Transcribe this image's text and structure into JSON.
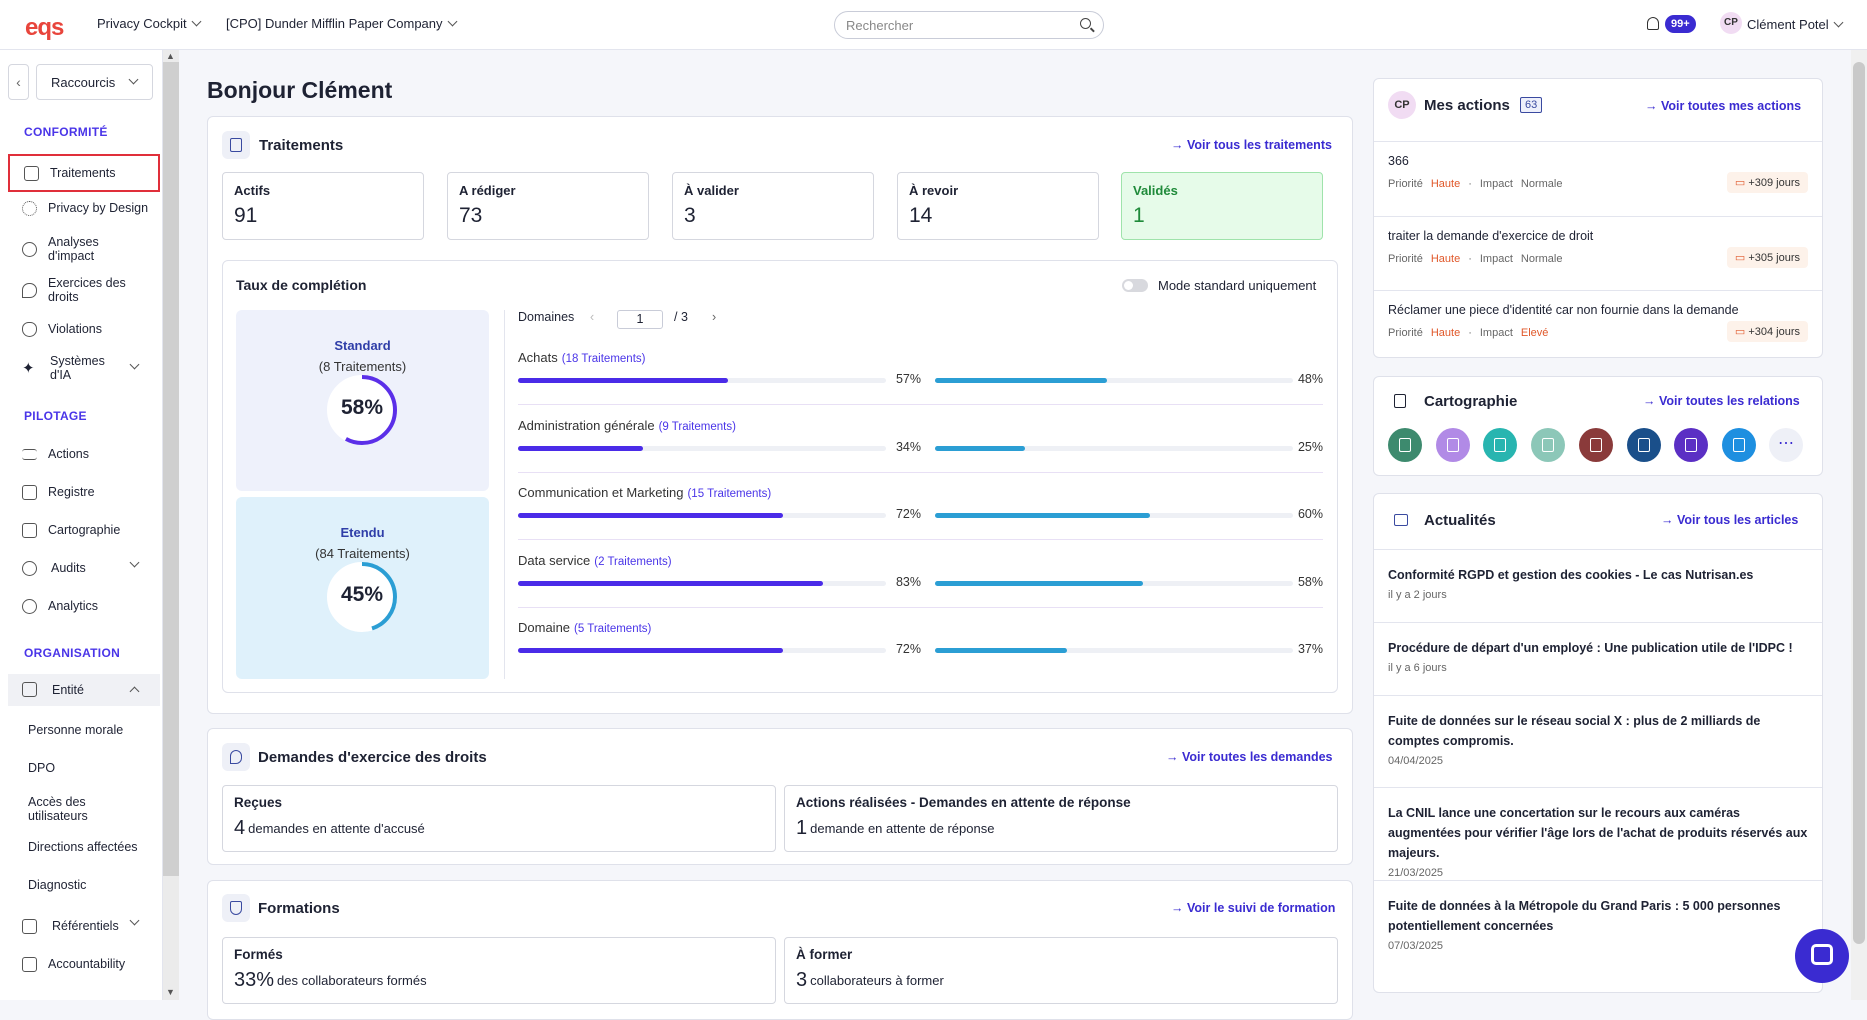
{
  "topbar": {
    "logo": "eqs",
    "app_selector": "Privacy Cockpit",
    "company_selector": "[CPO] Dunder Mifflin Paper Company",
    "search_placeholder": "Rechercher",
    "notifications": "99+",
    "user_initials": "CP",
    "user_name": "Clément Potel"
  },
  "sidebar": {
    "shortcuts": "Raccourcis",
    "section_conformite": "CONFORMITÉ",
    "traitements": "Traitements",
    "privacy": "Privacy by Design",
    "analyses": "Analyses d'impact",
    "exercices": "Exercices des droits",
    "violations": "Violations",
    "systemes": "Systèmes d'IA",
    "section_pilotage": "PILOTAGE",
    "actions": "Actions",
    "registre": "Registre",
    "cartographie": "Cartographie",
    "audits": "Audits",
    "analytics": "Analytics",
    "section_organisation": "ORGANISATION",
    "entite": "Entité",
    "personne_morale": "Personne morale",
    "dpo": "DPO",
    "acces": "Accès des utilisateurs",
    "directions": "Directions affectées",
    "diagnostic": "Diagnostic",
    "referentiels": "Référentiels",
    "accountability": "Accountability"
  },
  "greeting": "Bonjour Clément",
  "traitements": {
    "title": "Traitements",
    "link": "Voir tous les traitements",
    "stats": [
      {
        "label": "Actifs",
        "value": "91"
      },
      {
        "label": "A rédiger",
        "value": "73"
      },
      {
        "label": "À valider",
        "value": "3"
      },
      {
        "label": "À revoir",
        "value": "14"
      },
      {
        "label": "Validés",
        "value": "1"
      }
    ]
  },
  "completion": {
    "title": "Taux de complétion",
    "toggle_label": "Mode standard uniquement",
    "standard": {
      "title": "Standard",
      "sub": "(8 Traitements)",
      "pct": "58%",
      "fraction": 0.58
    },
    "etendu": {
      "title": "Etendu",
      "sub": "(84 Traitements)",
      "pct": "45%",
      "fraction": 0.45
    },
    "domains_label": "Domaines",
    "page": "1",
    "pages": "/ 3",
    "domains": [
      {
        "name": "Achats",
        "count": "(18 Traitements)",
        "a": 57,
        "b": 48,
        "a_label": "57%",
        "b_label": "48%"
      },
      {
        "name": "Administration générale",
        "count": "(9 Traitements)",
        "a": 34,
        "b": 25,
        "a_label": "34%",
        "b_label": "25%"
      },
      {
        "name": "Communication et Marketing",
        "count": "(15 Traitements)",
        "a": 72,
        "b": 60,
        "a_label": "72%",
        "b_label": "60%"
      },
      {
        "name": "Data service",
        "count": "(2 Traitements)",
        "a": 83,
        "b": 58,
        "a_label": "83%",
        "b_label": "58%"
      },
      {
        "name": "Domaine",
        "count": "(5 Traitements)",
        "a": 72,
        "b": 37,
        "a_label": "72%",
        "b_label": "37%"
      }
    ]
  },
  "demandes": {
    "title": "Demandes d'exercice des droits",
    "link": "Voir toutes les demandes",
    "recues_label": "Reçues",
    "recues_num": "4",
    "recues_text": "demandes en attente d'accusé",
    "actions_label": "Actions réalisées - Demandes en attente de réponse",
    "actions_num": "1",
    "actions_text": "demande en attente de réponse"
  },
  "formations": {
    "title": "Formations",
    "link": "Voir le suivi de formation",
    "formes_label": "Formés",
    "formes_num": "33%",
    "formes_text": "des collaborateurs formés",
    "aformer_label": "À former",
    "aformer_num": "3",
    "aformer_text": "collaborateurs à former"
  },
  "mes_actions": {
    "initials": "CP",
    "title": "Mes actions",
    "count": "63",
    "link": "Voir toutes mes actions",
    "priority_label": "Priorité",
    "impact_label": "Impact",
    "items": [
      {
        "title": "366",
        "priority": "Haute",
        "impact": "Normale",
        "due": "+309 jours"
      },
      {
        "title": "traiter la demande d'exercice de droit",
        "priority": "Haute",
        "impact": "Normale",
        "due": "+305 jours"
      },
      {
        "title": "Réclamer une piece d'identité car non fournie dans la demande",
        "priority": "Haute",
        "impact": "Elevé",
        "due": "+304 jours"
      }
    ]
  },
  "cartographie": {
    "title": "Cartographie",
    "link": "Voir toutes les relations",
    "more": "⋯",
    "icons": [
      {
        "name": "list",
        "color": "#3d8a6e"
      },
      {
        "name": "shield-check",
        "color": "#b18ae6"
      },
      {
        "name": "document",
        "color": "#28b5b0"
      },
      {
        "name": "database",
        "color": "#8cc7b8"
      },
      {
        "name": "report",
        "color": "#8a3a3a"
      },
      {
        "name": "people",
        "color": "#1a4f8a"
      },
      {
        "name": "building",
        "color": "#5b2fc4"
      },
      {
        "name": "window",
        "color": "#1e8fe0"
      }
    ]
  },
  "actualites": {
    "title": "Actualités",
    "link": "Voir tous les articles",
    "items": [
      {
        "title": "Conformité RGPD et gestion des cookies - Le cas Nutrisan.es",
        "date": "il y a 2 jours"
      },
      {
        "title": "Procédure de départ d'un employé : Une publication utile de l'IDPC !",
        "date": "il y a 6 jours"
      },
      {
        "title": "Fuite de données sur le réseau social X : plus de 2 milliards de comptes compromis.",
        "date": "04/04/2025"
      },
      {
        "title": "La CNIL lance une concertation sur le recours aux caméras augmentées pour vérifier l'âge lors de l'achat de produits réservés aux majeurs.",
        "date": "21/03/2025"
      },
      {
        "title": "Fuite de données à la Métropole du Grand Paris : 5 000 personnes potentiellement concernées",
        "date": "07/03/2025"
      }
    ]
  }
}
